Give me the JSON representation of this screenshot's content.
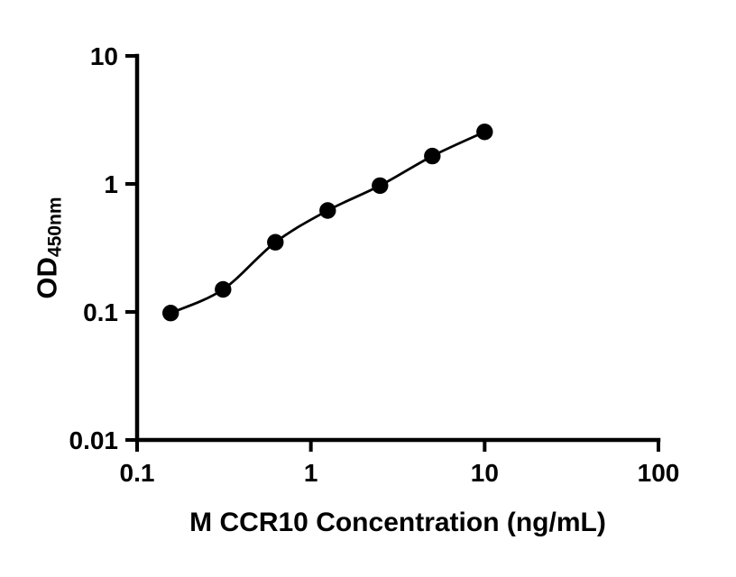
{
  "figure": {
    "ylabel_main": "OD",
    "ylabel_sub": "450nm"
  },
  "chart_data": {
    "type": "scatter",
    "x": [
      0.156,
      0.3125,
      0.625,
      1.25,
      2.5,
      5,
      10
    ],
    "y": [
      0.098,
      0.15,
      0.35,
      0.62,
      0.97,
      1.65,
      2.55
    ],
    "title": "",
    "xlabel": "M CCR10 Concentration (ng/mL)",
    "ylabel": "OD450nm",
    "xscale": "log",
    "yscale": "log",
    "xlim": [
      0.1,
      100
    ],
    "ylim": [
      0.01,
      10
    ],
    "x_ticks": [
      "0.1",
      "1",
      "10",
      "100"
    ],
    "y_ticks": [
      "0.01",
      "0.1",
      "1",
      "10"
    ],
    "grid": false,
    "legend": false,
    "curve": "smooth fit through points",
    "marker_color": "#000000",
    "line_color": "#000000",
    "axis_color": "#000000"
  }
}
